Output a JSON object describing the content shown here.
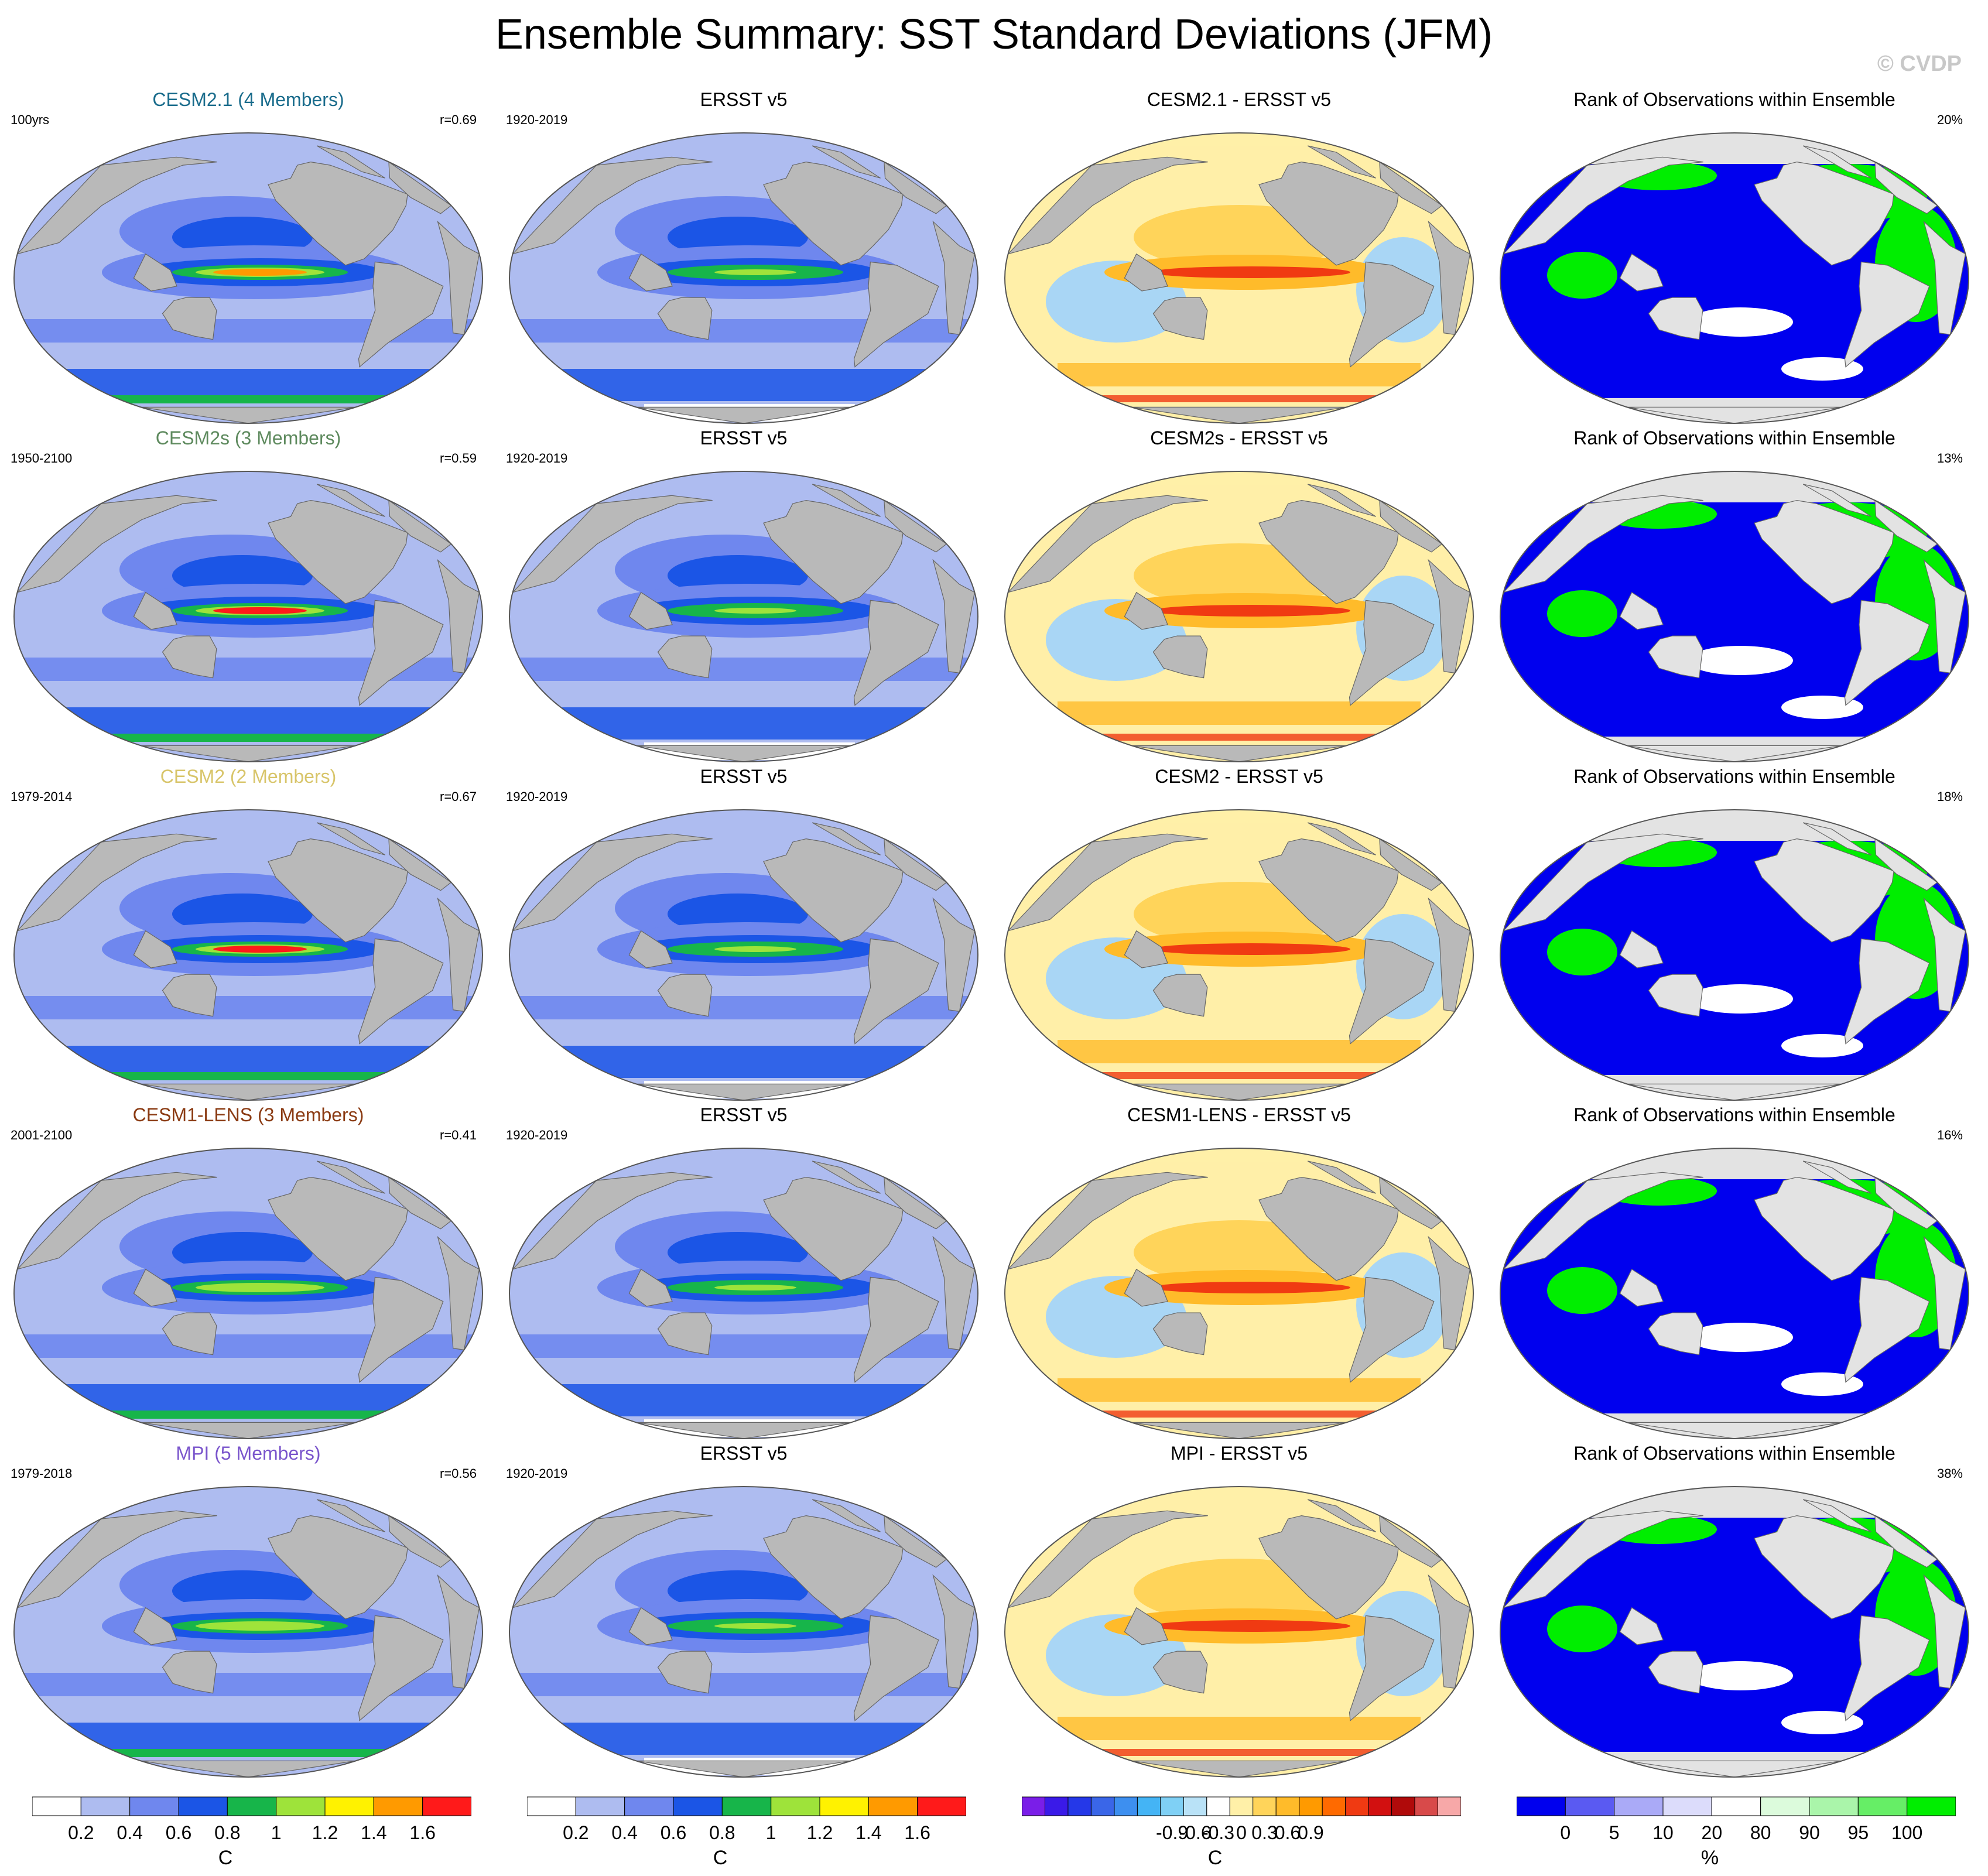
{
  "title": "Ensemble Summary: SST Standard Deviations (JFM)",
  "copyright": "© CVDP",
  "colors": {
    "land": "#b9b9b9",
    "ocean_std_low": "#aebcf0",
    "ocean_std_mid": "#6f87ee",
    "ocean_std_high": "#1b55e6",
    "green": "#17b54a",
    "lime": "#9ee33a",
    "yellow": "#fff200",
    "orange": "#ff9a00",
    "red": "#ff1a1a",
    "rank_blue": "#0000ee",
    "rank_green": "#00ee00",
    "diff_pale": "#ffefa8",
    "diff_lightblue": "#a9d6f5"
  },
  "rows": [
    {
      "model": {
        "title": "CESM2.1 (4 Members)",
        "title_color": "#1a6c8c",
        "left": "100yrs",
        "right": "r=0.69",
        "hot": "#ff9a00"
      },
      "obs": {
        "title": "ERSST v5",
        "left": "1920-2019",
        "right": ""
      },
      "diff": {
        "title": "CESM2.1 - ERSST v5",
        "left": "",
        "right": ""
      },
      "rank": {
        "title": "Rank of Observations within Ensemble",
        "left": "",
        "right": "20%"
      }
    },
    {
      "model": {
        "title": "CESM2s (3 Members)",
        "title_color": "#5e8a5e",
        "left": "1950-2100",
        "right": "r=0.59",
        "hot": "#ff1a1a"
      },
      "obs": {
        "title": "ERSST v5",
        "left": "1920-2019",
        "right": ""
      },
      "diff": {
        "title": "CESM2s - ERSST v5",
        "left": "",
        "right": ""
      },
      "rank": {
        "title": "Rank of Observations within Ensemble",
        "left": "",
        "right": "13%"
      }
    },
    {
      "model": {
        "title": "CESM2 (2 Members)",
        "title_color": "#d8c56a",
        "left": "1979-2014",
        "right": "r=0.67",
        "hot": "#ff1a1a"
      },
      "obs": {
        "title": "ERSST v5",
        "left": "1920-2019",
        "right": ""
      },
      "diff": {
        "title": "CESM2 - ERSST v5",
        "left": "",
        "right": ""
      },
      "rank": {
        "title": "Rank of Observations within Ensemble",
        "left": "",
        "right": "18%"
      }
    },
    {
      "model": {
        "title": "CESM1-LENS (3 Members)",
        "title_color": "#8a3a12",
        "left": "2001-2100",
        "right": "r=0.41",
        "hot": "#9ee33a"
      },
      "obs": {
        "title": "ERSST v5",
        "left": "1920-2019",
        "right": ""
      },
      "diff": {
        "title": "CESM1-LENS - ERSST v5",
        "left": "",
        "right": ""
      },
      "rank": {
        "title": "Rank of Observations within Ensemble",
        "left": "",
        "right": "16%"
      }
    },
    {
      "model": {
        "title": "MPI (5 Members)",
        "title_color": "#7a55cc",
        "left": "1979-2018",
        "right": "r=0.56",
        "hot": "#9ee33a"
      },
      "obs": {
        "title": "ERSST v5",
        "left": "1920-2019",
        "right": ""
      },
      "diff": {
        "title": "MPI - ERSST v5",
        "left": "",
        "right": ""
      },
      "rank": {
        "title": "Rank of Observations within Ensemble",
        "left": "",
        "right": "38%"
      }
    }
  ],
  "colorbars": [
    {
      "name": "model-std",
      "colors": [
        "#ffffff",
        "#aebcf0",
        "#6f87ee",
        "#1b55e6",
        "#17b54a",
        "#9ee33a",
        "#fff200",
        "#ff9a00",
        "#ff1a1a"
      ],
      "ticks": [
        "0.2",
        "0.4",
        "0.6",
        "0.8",
        "1",
        "1.2",
        "1.4",
        "1.6"
      ],
      "unit": "C"
    },
    {
      "name": "obs-std",
      "colors": [
        "#ffffff",
        "#aebcf0",
        "#6f87ee",
        "#1b55e6",
        "#17b54a",
        "#9ee33a",
        "#fff200",
        "#ff9a00",
        "#ff1a1a"
      ],
      "ticks": [
        "0.2",
        "0.4",
        "0.6",
        "0.8",
        "1",
        "1.2",
        "1.4",
        "1.6"
      ],
      "unit": "C"
    },
    {
      "name": "difference",
      "colors": [
        "#7a1ee8",
        "#3a1ae8",
        "#2538e8",
        "#3a66e8",
        "#3d8ff0",
        "#44b4f5",
        "#7fd0f5",
        "#b9e2f7",
        "#ffffff",
        "#fff0a8",
        "#ffd45a",
        "#ffbb2a",
        "#ff9a00",
        "#ff6a00",
        "#f03a12",
        "#d21010",
        "#b00a0a",
        "#d84a4a",
        "#f7a8a8"
      ],
      "ticks": [
        "-0.9",
        "-0.6",
        "-0.3",
        "0",
        "0.3",
        "0.6",
        "0.9"
      ],
      "unit": "C"
    },
    {
      "name": "rank",
      "colors": [
        "#0000ee",
        "#5a5af2",
        "#aaaaf7",
        "#dcdcfb",
        "#ffffff",
        "#dcfbdc",
        "#aaf5aa",
        "#66ee66",
        "#00ee00"
      ],
      "ticks": [
        "0",
        "5",
        "10",
        "20",
        "80",
        "90",
        "95",
        "100"
      ],
      "unit": "%"
    }
  ]
}
